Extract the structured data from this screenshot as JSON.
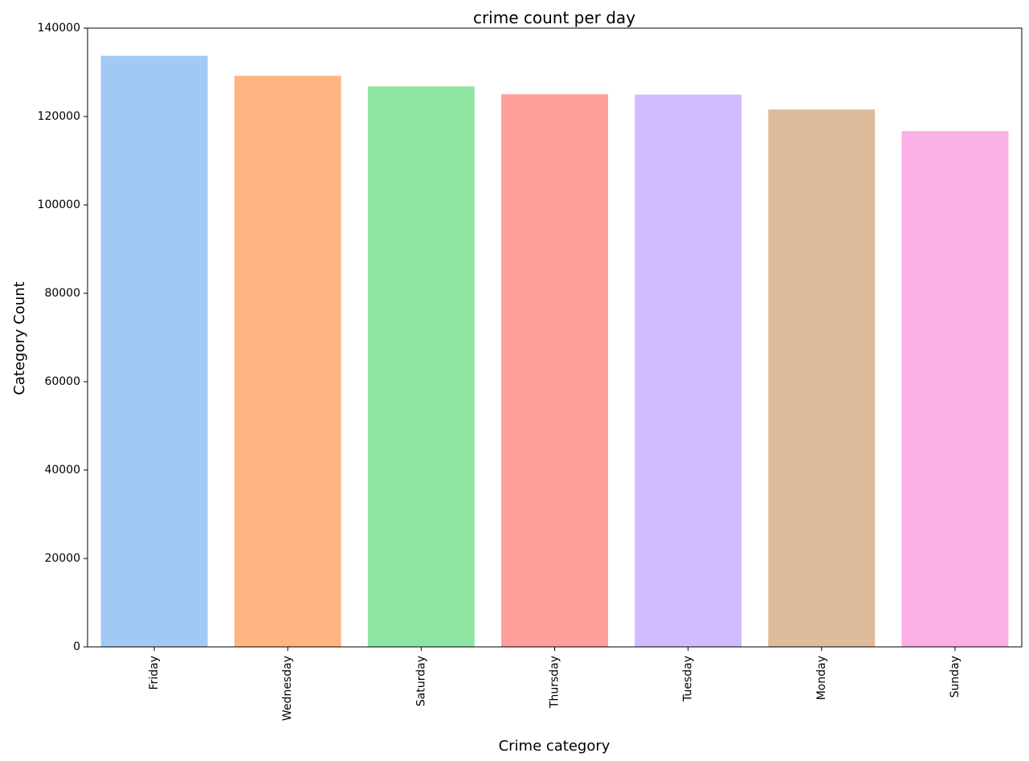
{
  "chart_data": {
    "type": "bar",
    "title": "crime count per day",
    "xlabel": "Crime category",
    "ylabel": "Category Count",
    "categories": [
      "Friday",
      "Wednesday",
      "Saturday",
      "Thursday",
      "Tuesday",
      "Monday",
      "Sunday"
    ],
    "values": [
      133734,
      129211,
      126810,
      125038,
      124965,
      121584,
      116707
    ],
    "colors": [
      "#a1c9f4",
      "#ffb482",
      "#8de5a1",
      "#ff9f9b",
      "#d0bbff",
      "#debb9b",
      "#fab0e4"
    ],
    "ylim": [
      0,
      140000
    ],
    "yticks": [
      0,
      20000,
      40000,
      60000,
      80000,
      100000,
      120000,
      140000
    ],
    "ytick_labels": [
      "0",
      "20000",
      "40000",
      "60000",
      "80000",
      "100000",
      "120000",
      "140000"
    ],
    "xtick_rotation": "vertical",
    "grid": false,
    "legend": false
  }
}
